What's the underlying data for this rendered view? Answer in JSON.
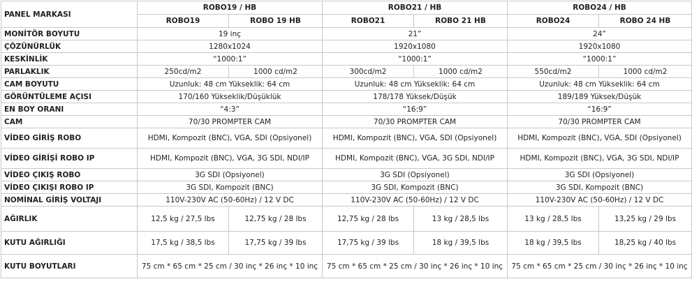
{
  "table": {
    "corner": "PANEL MARKASI",
    "groups": [
      {
        "title": "ROBO19 / HB",
        "models": [
          "ROBO19",
          "ROBO 19 HB"
        ]
      },
      {
        "title": "ROBO21 / HB",
        "models": [
          "ROBO21",
          "ROBO 21 HB"
        ]
      },
      {
        "title": "ROBO24 / HB",
        "models": [
          "ROBO24",
          "ROBO 24 HB"
        ]
      }
    ],
    "rows": [
      {
        "label": "MONİTÖR BOYUTU",
        "cells": [
          "19 inç",
          "21”",
          "24”"
        ]
      },
      {
        "label": "ÇÖZÜNÜRLÜK",
        "cells": [
          "1280x1024",
          "1920x1080",
          "1920x1080"
        ]
      },
      {
        "label": "KESKİNLİK",
        "cells": [
          "“1000:1”",
          "“1000:1”",
          "“1000:1”"
        ]
      },
      {
        "label": "PARLAKLIK",
        "cells": [
          [
            "250cd/m2",
            "1000 cd/m2"
          ],
          [
            "300cd/m2",
            "1000 cd/m2"
          ],
          [
            "550cd/m2",
            "1000 cd/m2"
          ]
        ]
      },
      {
        "label": "CAM BOYUTU",
        "cells": [
          "Uzunluk: 48 cm Yükseklik: 64 cm",
          "Uzunluk: 48 cm Yükseklik: 64 cm",
          "Uzunluk: 48 cm Yükseklik: 64 cm"
        ]
      },
      {
        "label": "GÖRÜNTÜLEME AÇISI",
        "cells": [
          "170/160 Yükseklik/Düşüklük",
          "178/178 Yüksek/Düşük",
          "189/189 Yüksek/Düşük"
        ]
      },
      {
        "label": "EN BOY ORANI",
        "cells": [
          "“4:3”",
          "“16:9”",
          "“16:9”"
        ]
      },
      {
        "label": "CAM",
        "cells": [
          "70/30 PROMPTER CAM",
          "70/30 PROMPTER CAM",
          "70/30 PROMPTER CAM"
        ]
      },
      {
        "label": "VİDEO GİRİŞ ROBO",
        "cells": [
          "HDMI, Kompozit (BNC), VGA, SDI (Opsiyonel)",
          "HDMI, Kompozit (BNC), VGA, SDI (Opsiyonel)",
          "HDMI, Kompozit (BNC), VGA, SDI (Opsiyonel)"
        ]
      },
      {
        "label": "VİDEO GİRİŞİ ROBO IP",
        "cells": [
          "HDMI, Kompozit (BNC), VGA, 3G SDI, NDI/IP",
          "HDMI, Kompozit (BNC), VGA, 3G SDI, NDI/IP",
          "HDMI, Kompozit (BNC), VGA, 3G SDI, NDI/IP"
        ]
      },
      {
        "label": "VİDEO ÇIKIŞ ROBO",
        "cells": [
          "3G SDI (Opsiyonel)",
          "3G SDI (Opsiyonel)",
          "3G SDI (Opsiyonel)"
        ]
      },
      {
        "label": "VİDEO ÇIKIŞI ROBO IP",
        "cells": [
          "3G SDI, Kompozit (BNC)",
          "3G SDI, Kompozit (BNC)",
          "3G SDI, Kompozit (BNC)"
        ]
      },
      {
        "label": "NOMİNAL GİRİŞ VOLTAJI",
        "cells": [
          "110V-230V AC (50-60Hz) / 12 V DC",
          "110V-230V AC (50-60Hz) / 12 V DC",
          "110V-230V AC (50-60Hz) / 12 V DC"
        ]
      },
      {
        "label": "AĞIRLIK",
        "cells": [
          [
            "12,5 kg / 27,5 lbs",
            "12,75 kg / 28 lbs"
          ],
          [
            "12,75 kg / 28 lbs",
            "13 kg / 28,5 lbs"
          ],
          [
            "13 kg / 28,5 lbs",
            "13,25 kg / 29 lbs"
          ]
        ]
      },
      {
        "label": "KUTU AĞIRLIĞI",
        "cells": [
          [
            "17,5 kg / 38,5 lbs",
            "17,75 kg / 39 lbs"
          ],
          [
            "17,75 kg / 39 lbs",
            "18 kg / 39,5 lbs"
          ],
          [
            "18 kg / 39,5 lbs",
            "18,25 kg / 40 lbs"
          ]
        ]
      },
      {
        "label": "KUTU BOYUTLARI",
        "cells": [
          "75 cm * 65 cm * 25 cm / 30 inç * 26 inç * 10 inç",
          "75 cm * 65 cm * 25 cm / 30 inç * 26 inç * 10 inç",
          "75 cm * 65 cm * 25 cm / 30 inç * 26 inç * 10 inç"
        ]
      }
    ]
  }
}
